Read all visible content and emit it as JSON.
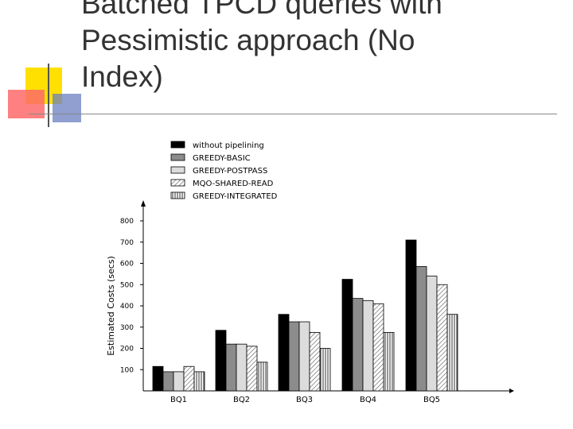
{
  "slide": {
    "title_lines": [
      "Batched TPCD queries with",
      "Pessimistic approach (No",
      "Index)"
    ]
  },
  "colors": {
    "title_text": "#333333",
    "deco_yellow": "#ffe000",
    "deco_red": "#ff5050",
    "deco_blue": "#5b6fb0",
    "deco_line": "#555555"
  },
  "chart_data": {
    "type": "bar",
    "categories": [
      "BQ1",
      "BQ2",
      "BQ3",
      "BQ4",
      "BQ5"
    ],
    "ylabel": "Estimated Costs (secs)",
    "xlabel": "",
    "ylim": [
      0,
      850
    ],
    "yticks": [
      100,
      200,
      300,
      400,
      500,
      600,
      700,
      800
    ],
    "legend_position": "top",
    "series": [
      {
        "name": "without pipelining",
        "pattern": "black",
        "values": [
          115,
          285,
          360,
          525,
          710
        ]
      },
      {
        "name": "GREEDY-BASIC",
        "pattern": "dark-gray",
        "values": [
          90,
          220,
          325,
          435,
          585
        ]
      },
      {
        "name": "GREEDY-POSTPASS",
        "pattern": "light-gray",
        "values": [
          90,
          220,
          325,
          425,
          540
        ]
      },
      {
        "name": "MQO-SHARED-READ",
        "pattern": "diagonal-hatch",
        "values": [
          115,
          210,
          275,
          410,
          500
        ]
      },
      {
        "name": "GREEDY-INTEGRATED",
        "pattern": "vertical-hatch",
        "values": [
          90,
          135,
          200,
          275,
          360
        ]
      }
    ]
  }
}
